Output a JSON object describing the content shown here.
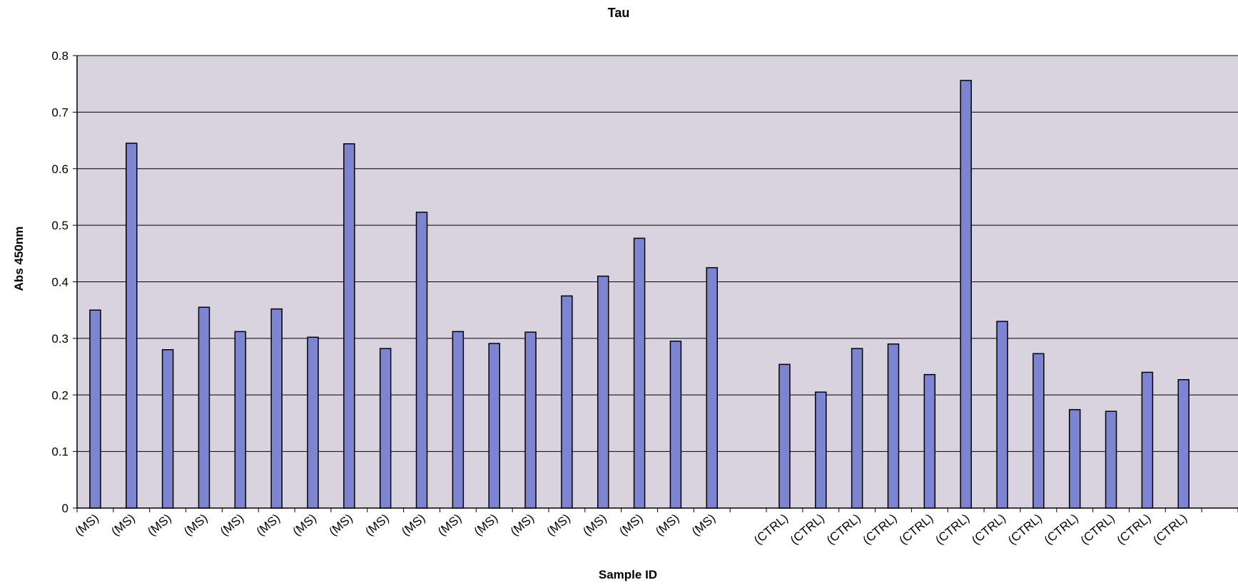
{
  "chart_data": {
    "type": "bar",
    "title": "Tau",
    "xlabel": "Sample ID",
    "ylabel": "Abs 450nm",
    "ylim": [
      0,
      0.8
    ],
    "yticks": [
      "0",
      "0.1",
      "0.2",
      "0.3",
      "0.4",
      "0.5",
      "0.6",
      "0.7",
      "0.8"
    ],
    "grid": true,
    "legend": "none",
    "categories": [
      "(MS)",
      "(MS)",
      "(MS)",
      "(MS)",
      "(MS)",
      "(MS)",
      "(MS)",
      "(MS)",
      "(MS)",
      "(MS)",
      "(MS)",
      "(MS)",
      "(MS)",
      "(MS)",
      "(MS)",
      "(MS)",
      "(MS)",
      "(MS)",
      "",
      "(CTRL)",
      "(CTRL)",
      "(CTRL)",
      "(CTRL)",
      "(CTRL)",
      "(CTRL)",
      "(CTRL)",
      "(CTRL)",
      "(CTRL)",
      "(CTRL)",
      "(CTRL)",
      "(CTRL)",
      ""
    ],
    "values": [
      0.35,
      0.645,
      0.28,
      0.355,
      0.312,
      0.352,
      0.302,
      0.644,
      0.282,
      0.523,
      0.312,
      0.291,
      0.311,
      0.375,
      0.41,
      0.477,
      0.295,
      0.425,
      null,
      0.254,
      0.205,
      0.282,
      0.29,
      0.236,
      0.756,
      0.33,
      0.273,
      0.174,
      0.171,
      0.24,
      0.227,
      null
    ],
    "colors": {
      "bar": "#7d84d0",
      "bar_stroke": "#000000",
      "plot_background": "#d9d3df",
      "gridline": "#000000"
    }
  }
}
